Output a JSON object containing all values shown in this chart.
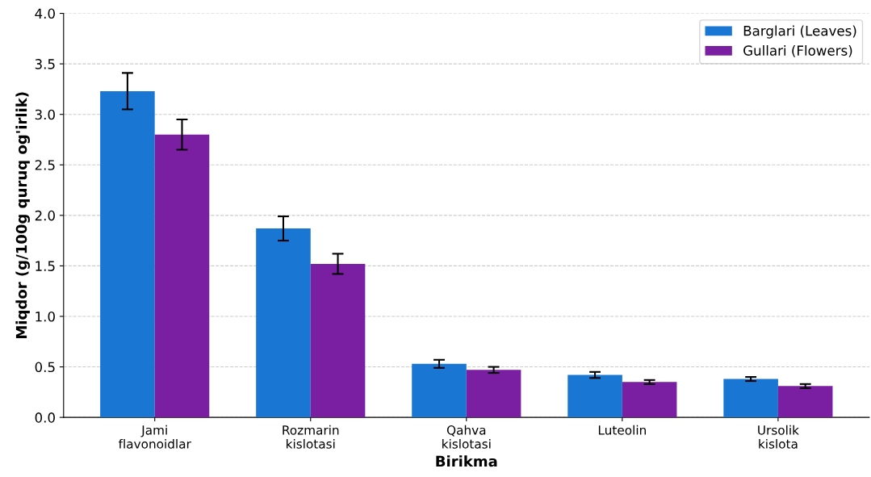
{
  "chart_data": {
    "type": "bar",
    "xlabel": "Birikma",
    "ylabel": "Miqdor (g/100g quruq og'irlik)",
    "categories": [
      "Jami\nflavonoidlar",
      "Rozmarin\nkislotasi",
      "Qahva\nkislotasi",
      "Luteolin",
      "Ursolik\nkislota"
    ],
    "series": [
      {
        "name": "Barglari (Leaves)",
        "color": "#1976d2",
        "values": [
          3.23,
          1.87,
          0.53,
          0.42,
          0.38
        ],
        "errors": [
          0.18,
          0.12,
          0.04,
          0.03,
          0.02
        ]
      },
      {
        "name": "Gullari (Flowers)",
        "color": "#7b1fa2",
        "values": [
          2.8,
          1.52,
          0.47,
          0.35,
          0.31
        ],
        "errors": [
          0.15,
          0.1,
          0.03,
          0.02,
          0.02
        ]
      }
    ],
    "ylim": [
      0,
      4.0
    ],
    "yticks": [
      {
        "value": 0,
        "label": "0.0"
      },
      {
        "value": 0.5,
        "label": "0.5"
      },
      {
        "value": 1,
        "label": "1.0"
      },
      {
        "value": 1.5,
        "label": "1.5"
      },
      {
        "value": 2,
        "label": "2.0"
      },
      {
        "value": 2.5,
        "label": "2.5"
      },
      {
        "value": 3,
        "label": "3.0"
      },
      {
        "value": 3.5,
        "label": "3.5"
      },
      {
        "value": 4,
        "label": "4.0"
      }
    ],
    "grid": "y",
    "legend": "top right"
  }
}
